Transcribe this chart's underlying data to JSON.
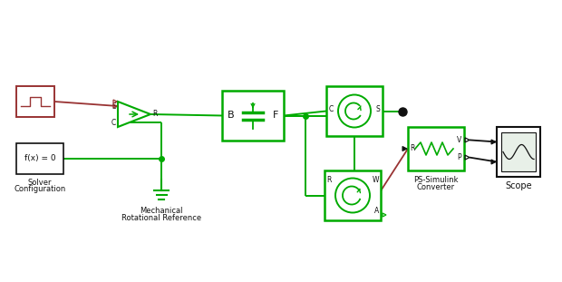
{
  "bg_color": "#ffffff",
  "green": "#00aa00",
  "red_brown": "#993333",
  "black": "#111111",
  "dark_gray": "#444444",
  "figsize": [
    6.2,
    3.11
  ],
  "dpi": 100,
  "labels": {
    "solver": [
      "Solver",
      "Configuration"
    ],
    "mech_ref": [
      "Mechanical",
      "Rotational Reference"
    ],
    "ps_sim": [
      "PS-Simulink",
      "Converter"
    ],
    "scope": "Scope"
  }
}
